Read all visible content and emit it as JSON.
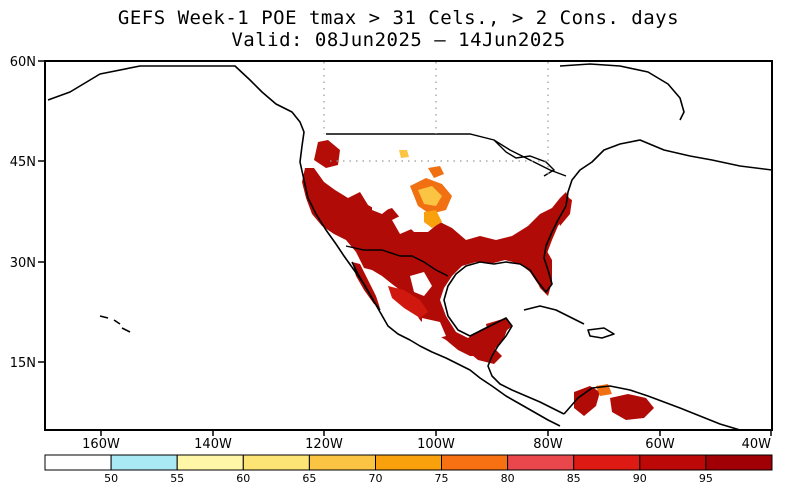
{
  "title": {
    "line1": "GEFS Week-1 POE tmax > 31 Cels., > 2 Cons. days",
    "line2": "Valid: 08Jun2025 – 14Jun2025"
  },
  "map": {
    "lat_labels": [
      "60N",
      "45N",
      "30N",
      "15N"
    ],
    "lon_labels": [
      "160W",
      "140W",
      "120W",
      "100W",
      "80W",
      "60W",
      "40W"
    ]
  },
  "colorbar": {
    "colors": [
      "#ffffff",
      "#a9e8f5",
      "#fff6a8",
      "#fde575",
      "#fbc443",
      "#f9a10d",
      "#f77011",
      "#e9474b",
      "#dd1b14",
      "#bc0807",
      "#a00005"
    ],
    "ticks": [
      "50",
      "55",
      "60",
      "65",
      "70",
      "75",
      "80",
      "85",
      "90",
      "95"
    ]
  }
}
